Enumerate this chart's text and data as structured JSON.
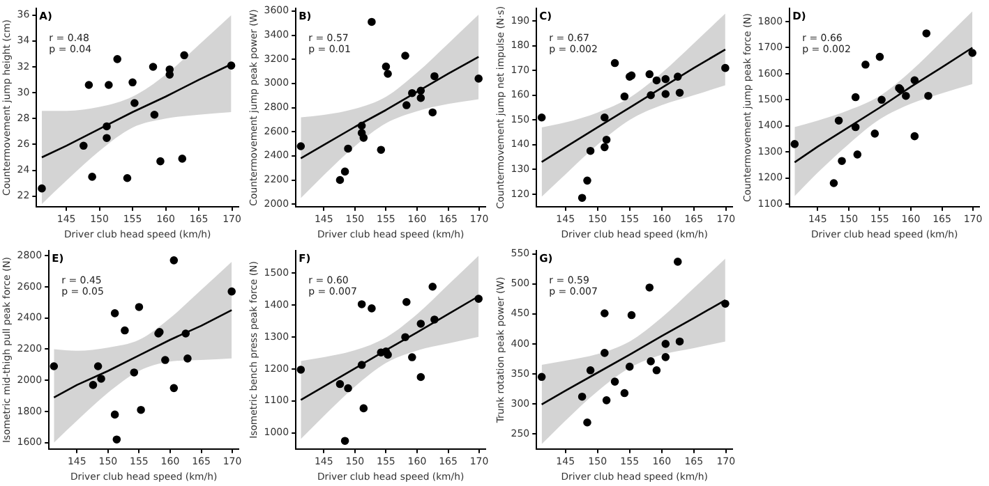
{
  "chart_data": [
    {
      "type": "scatter",
      "title": "A)",
      "xlabel": "Driver club head speed (km/h)",
      "ylabel": "Countermovement jump height (cm)",
      "annotations": [
        "r = 0.48",
        "p = 0.04"
      ],
      "xlim": [
        140.5,
        171
      ],
      "xticks": [
        145,
        150,
        155,
        160,
        165,
        170
      ],
      "ylim": [
        21.2,
        36.5
      ],
      "yticks": [
        22,
        24,
        26,
        28,
        30,
        32,
        34,
        36
      ],
      "grid": false,
      "legend": false,
      "series": [
        {
          "marker": "circle",
          "color": "#000000",
          "x": [
            141.3,
            147.6,
            148.4,
            148.9,
            151.1,
            151.1,
            151.4,
            152.7,
            154.2,
            155.0,
            155.3,
            158.1,
            158.3,
            159.2,
            160.6,
            160.6,
            162.5,
            162.8,
            169.9
          ],
          "values": [
            22.6,
            25.9,
            30.6,
            23.5,
            27.4,
            26.5,
            30.6,
            32.6,
            23.4,
            30.8,
            29.2,
            32.0,
            28.3,
            24.7,
            31.8,
            31.4,
            24.9,
            32.9,
            32.1
          ]
        },
        {
          "type": "line",
          "marker": "none",
          "color": "#000000",
          "x": [
            141.3,
            145,
            150,
            155,
            160,
            165,
            169.9
          ],
          "values": [
            25.0,
            25.9,
            27.2,
            28.5,
            29.7,
            31.0,
            32.2
          ],
          "lower": [
            21.4,
            23.2,
            25.5,
            27.3,
            28.0,
            28.3,
            28.5
          ],
          "upper": [
            28.6,
            28.6,
            28.9,
            29.7,
            31.4,
            33.7,
            36.0
          ]
        }
      ]
    },
    {
      "type": "scatter",
      "title": "B)",
      "xlabel": "Driver club head speed (km/h)",
      "ylabel": "Countermovement jump peak power (W)",
      "annotations": [
        "r = 0.57",
        "p = 0.01"
      ],
      "xlim": [
        140.5,
        171
      ],
      "xticks": [
        145,
        150,
        155,
        160,
        165,
        170
      ],
      "ylim": [
        1980,
        3620
      ],
      "yticks": [
        2000,
        2200,
        2400,
        2600,
        2800,
        3000,
        3200,
        3400,
        3600
      ],
      "grid": false,
      "legend": false,
      "series": [
        {
          "marker": "circle",
          "color": "#000000",
          "x": [
            141.3,
            147.6,
            148.4,
            148.9,
            151.1,
            151.1,
            151.4,
            152.7,
            154.2,
            155.0,
            155.3,
            158.1,
            158.3,
            159.2,
            160.6,
            160.6,
            162.5,
            162.8,
            169.9
          ],
          "values": [
            2480,
            2200,
            2270,
            2460,
            2650,
            2590,
            2550,
            3510,
            2450,
            3140,
            3080,
            3230,
            2820,
            2920,
            2940,
            2880,
            2760,
            3060,
            3040
          ]
        },
        {
          "type": "line",
          "marker": "none",
          "color": "#000000",
          "x": [
            141.3,
            145,
            150,
            155,
            160,
            165,
            169.9
          ],
          "values": [
            2380,
            2490,
            2640,
            2780,
            2930,
            3080,
            3220
          ],
          "lower": [
            2050,
            2240,
            2480,
            2670,
            2770,
            2830,
            2870
          ],
          "upper": [
            2720,
            2740,
            2790,
            2890,
            3090,
            3330,
            3570
          ]
        }
      ]
    },
    {
      "type": "scatter",
      "title": "C)",
      "xlabel": "Driver club head speed (km/h)",
      "ylabel": "Countermovement jump net impulse (N·s)",
      "annotations": [
        "r = 0.67",
        "p = 0.002"
      ],
      "xlim": [
        140.5,
        171
      ],
      "xticks": [
        145,
        150,
        155,
        160,
        165,
        170
      ],
      "ylim": [
        115,
        195
      ],
      "yticks": [
        120,
        130,
        140,
        150,
        160,
        170,
        180,
        190
      ],
      "grid": false,
      "legend": false,
      "series": [
        {
          "marker": "circle",
          "color": "#000000",
          "x": [
            141.3,
            147.6,
            148.4,
            148.9,
            151.1,
            151.1,
            151.4,
            152.7,
            154.2,
            155.0,
            155.3,
            158.1,
            158.3,
            159.2,
            160.6,
            160.6,
            162.5,
            162.8,
            169.9
          ],
          "values": [
            151,
            118.5,
            125.5,
            137.5,
            151,
            139,
            142,
            173,
            159.5,
            167.5,
            168,
            168.5,
            160,
            166,
            166.5,
            160.5,
            167.5,
            161,
            171
          ]
        },
        {
          "type": "line",
          "marker": "none",
          "color": "#000000",
          "x": [
            141.3,
            145,
            150,
            155,
            160,
            165,
            169.9
          ],
          "values": [
            133,
            139,
            147,
            155,
            163,
            171,
            178.5
          ],
          "lower": [
            119,
            128,
            140,
            150,
            156,
            160,
            164
          ],
          "upper": [
            147,
            149,
            153,
            159,
            169,
            181,
            193
          ]
        }
      ]
    },
    {
      "type": "scatter",
      "title": "D)",
      "xlabel": "Driver club head speed (km/h)",
      "ylabel": "Countermovement jump peak force (N)",
      "annotations": [
        "r = 0.66",
        "p = 0.002"
      ],
      "xlim": [
        140.5,
        171
      ],
      "xticks": [
        145,
        150,
        155,
        160,
        165,
        170
      ],
      "ylim": [
        1090,
        1850
      ],
      "yticks": [
        1100,
        1200,
        1300,
        1400,
        1500,
        1600,
        1700,
        1800
      ],
      "grid": false,
      "legend": false,
      "series": [
        {
          "marker": "circle",
          "color": "#000000",
          "x": [
            141.3,
            147.6,
            148.4,
            148.9,
            151.1,
            151.1,
            151.4,
            152.7,
            154.2,
            155.0,
            155.3,
            158.1,
            158.3,
            159.2,
            160.6,
            160.6,
            162.5,
            162.8,
            169.9
          ],
          "values": [
            1330,
            1180,
            1420,
            1265,
            1510,
            1395,
            1290,
            1635,
            1370,
            1665,
            1500,
            1545,
            1540,
            1515,
            1575,
            1360,
            1755,
            1515,
            1680
          ]
        },
        {
          "type": "line",
          "marker": "none",
          "color": "#000000",
          "x": [
            141.3,
            145,
            150,
            155,
            160,
            165,
            169.9
          ],
          "values": [
            1260,
            1320,
            1395,
            1470,
            1550,
            1625,
            1700
          ],
          "lower": [
            1130,
            1220,
            1330,
            1425,
            1485,
            1525,
            1560
          ],
          "upper": [
            1395,
            1420,
            1460,
            1515,
            1610,
            1725,
            1840
          ]
        }
      ]
    },
    {
      "type": "scatter",
      "title": "E)",
      "xlabel": "Driver club head speed (km/h)",
      "ylabel": "Isometric mid-thigh pull peak force (N)",
      "annotations": [
        "r = 0.45",
        "p = 0.05"
      ],
      "xlim": [
        140.5,
        171
      ],
      "xticks": [
        145,
        150,
        155,
        160,
        165,
        170
      ],
      "ylim": [
        1560,
        2830
      ],
      "yticks": [
        1600,
        1800,
        2000,
        2200,
        2400,
        2600,
        2800
      ],
      "grid": false,
      "legend": false,
      "series": [
        {
          "marker": "circle",
          "color": "#000000",
          "x": [
            141.3,
            147.6,
            148.4,
            148.9,
            151.1,
            151.1,
            151.4,
            152.7,
            154.2,
            155.0,
            155.3,
            158.1,
            158.3,
            159.2,
            160.6,
            160.6,
            162.5,
            162.8,
            169.9
          ],
          "values": [
            2090,
            1970,
            2090,
            2010,
            2430,
            1780,
            1620,
            2320,
            2050,
            2470,
            1810,
            2300,
            2310,
            2130,
            2770,
            1950,
            2300,
            2140,
            2570
          ]
        },
        {
          "type": "line",
          "marker": "none",
          "color": "#000000",
          "x": [
            141.3,
            145,
            150,
            155,
            160,
            165,
            169.9
          ],
          "values": [
            1890,
            1970,
            2060,
            2160,
            2260,
            2350,
            2450
          ],
          "lower": [
            1600,
            1740,
            1920,
            2060,
            2120,
            2130,
            2140
          ],
          "upper": [
            2200,
            2190,
            2210,
            2260,
            2400,
            2580,
            2760
          ]
        }
      ]
    },
    {
      "type": "scatter",
      "title": "F)",
      "xlabel": "Driver club head speed (km/h)",
      "ylabel": "Isometric bench press peak force (N)",
      "annotations": [
        "r = 0.60",
        "p = 0.007"
      ],
      "xlim": [
        140.5,
        171
      ],
      "xticks": [
        145,
        150,
        155,
        160,
        165,
        170
      ],
      "ylim": [
        950,
        1570
      ],
      "yticks": [
        1000,
        1100,
        1200,
        1300,
        1400,
        1500
      ],
      "grid": false,
      "legend": false,
      "series": [
        {
          "marker": "circle",
          "color": "#000000",
          "x": [
            141.3,
            147.6,
            148.4,
            148.9,
            151.1,
            151.1,
            151.4,
            152.7,
            154.2,
            155.0,
            155.3,
            158.1,
            158.3,
            159.2,
            160.6,
            160.6,
            162.5,
            162.8,
            169.9
          ],
          "values": [
            1198,
            1153,
            975,
            1140,
            1213,
            1403,
            1077,
            1390,
            1252,
            1255,
            1245,
            1300,
            1410,
            1237,
            1342,
            1175,
            1458,
            1355,
            1420
          ]
        },
        {
          "type": "line",
          "marker": "none",
          "color": "#000000",
          "x": [
            141.3,
            145,
            150,
            155,
            160,
            165,
            169.9
          ],
          "values": [
            1103,
            1145,
            1202,
            1259,
            1315,
            1372,
            1428
          ],
          "lower": [
            981,
            1053,
            1145,
            1219,
            1258,
            1280,
            1301
          ],
          "upper": [
            1225,
            1237,
            1259,
            1299,
            1372,
            1464,
            1555
          ]
        }
      ]
    },
    {
      "type": "scatter",
      "title": "G)",
      "xlabel": "Driver club head speed (km/h)",
      "ylabel": "Trunk rotation peak power (W)",
      "annotations": [
        "r = 0.59",
        "p = 0.007"
      ],
      "xlim": [
        140.5,
        171
      ],
      "xticks": [
        145,
        150,
        155,
        160,
        165,
        170
      ],
      "ylim": [
        225,
        555
      ],
      "yticks": [
        250,
        300,
        350,
        400,
        450,
        500,
        550
      ],
      "grid": false,
      "legend": false,
      "series": [
        {
          "marker": "circle",
          "color": "#000000",
          "x": [
            141.3,
            147.6,
            148.4,
            148.9,
            151.1,
            151.1,
            151.4,
            152.7,
            154.2,
            155.0,
            155.3,
            158.1,
            158.3,
            159.2,
            160.6,
            160.6,
            162.5,
            162.8,
            169.9
          ],
          "values": [
            345,
            312,
            269,
            356,
            385,
            451,
            306,
            337,
            318,
            362,
            448,
            494,
            371,
            356,
            400,
            378,
            537,
            404,
            467
          ]
        },
        {
          "type": "line",
          "marker": "none",
          "color": "#000000",
          "x": [
            141.3,
            145,
            150,
            155,
            160,
            165,
            169.9
          ],
          "values": [
            299,
            322,
            352,
            382,
            413,
            443,
            473
          ],
          "lower": [
            233,
            272,
            321,
            360,
            382,
            393,
            404
          ],
          "upper": [
            365,
            372,
            383,
            404,
            444,
            493,
            542
          ]
        }
      ]
    }
  ]
}
